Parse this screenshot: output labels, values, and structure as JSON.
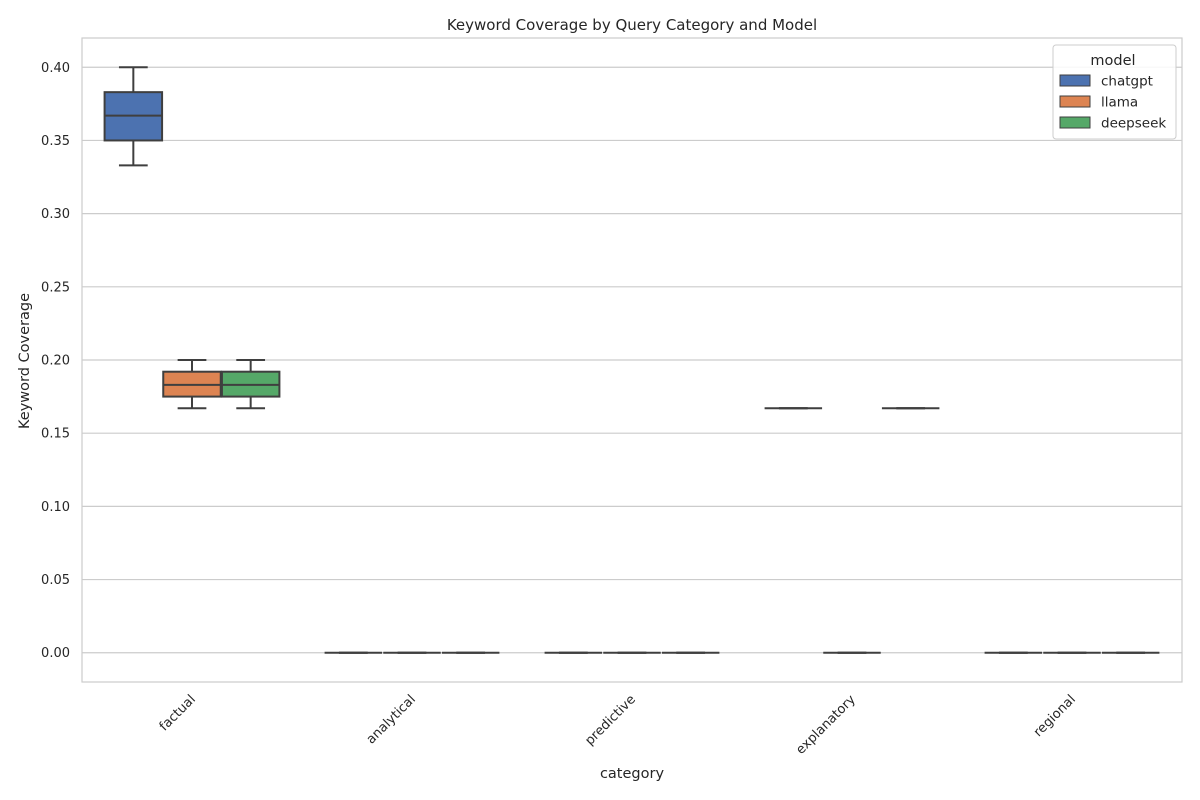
{
  "chart_data": {
    "type": "box",
    "title": "Keyword Coverage by Query Category and Model",
    "xlabel": "category",
    "ylabel": "Keyword Coverage",
    "ylim": [
      -0.02,
      0.42
    ],
    "yticks": [
      "0.00",
      "0.05",
      "0.10",
      "0.15",
      "0.20",
      "0.25",
      "0.30",
      "0.35",
      "0.40"
    ],
    "ytick_values": [
      0,
      0.05,
      0.1,
      0.15,
      0.2,
      0.25,
      0.3,
      0.35,
      0.4
    ],
    "categories": [
      "factual",
      "analytical",
      "predictive",
      "explanatory",
      "regional"
    ],
    "grid": true,
    "legend": {
      "title": "model",
      "placement": "top-right"
    },
    "series": [
      {
        "name": "chatgpt",
        "color": "#4c72b0",
        "boxes": [
          {
            "min": 0.333,
            "q1": 0.35,
            "median": 0.367,
            "q3": 0.383,
            "max": 0.4
          },
          {
            "min": 0,
            "q1": 0,
            "median": 0,
            "q3": 0,
            "max": 0
          },
          {
            "min": 0,
            "q1": 0,
            "median": 0,
            "q3": 0,
            "max": 0
          },
          {
            "min": 0.167,
            "q1": 0.167,
            "median": 0.167,
            "q3": 0.167,
            "max": 0.167
          },
          {
            "min": 0,
            "q1": 0,
            "median": 0,
            "q3": 0,
            "max": 0
          }
        ]
      },
      {
        "name": "llama",
        "color": "#dd8452",
        "boxes": [
          {
            "min": 0.167,
            "q1": 0.175,
            "median": 0.183,
            "q3": 0.192,
            "max": 0.2
          },
          {
            "min": 0,
            "q1": 0,
            "median": 0,
            "q3": 0,
            "max": 0
          },
          {
            "min": 0,
            "q1": 0,
            "median": 0,
            "q3": 0,
            "max": 0
          },
          {
            "min": 0,
            "q1": 0,
            "median": 0,
            "q3": 0,
            "max": 0
          },
          {
            "min": 0,
            "q1": 0,
            "median": 0,
            "q3": 0,
            "max": 0
          }
        ]
      },
      {
        "name": "deepseek",
        "color": "#55a868",
        "boxes": [
          {
            "min": 0.167,
            "q1": 0.175,
            "median": 0.183,
            "q3": 0.192,
            "max": 0.2
          },
          {
            "min": 0,
            "q1": 0,
            "median": 0,
            "q3": 0,
            "max": 0
          },
          {
            "min": 0,
            "q1": 0,
            "median": 0,
            "q3": 0,
            "max": 0
          },
          {
            "min": 0.167,
            "q1": 0.167,
            "median": 0.167,
            "q3": 0.167,
            "max": 0.167
          },
          {
            "min": 0,
            "q1": 0,
            "median": 0,
            "q3": 0,
            "max": 0
          }
        ]
      }
    ]
  }
}
